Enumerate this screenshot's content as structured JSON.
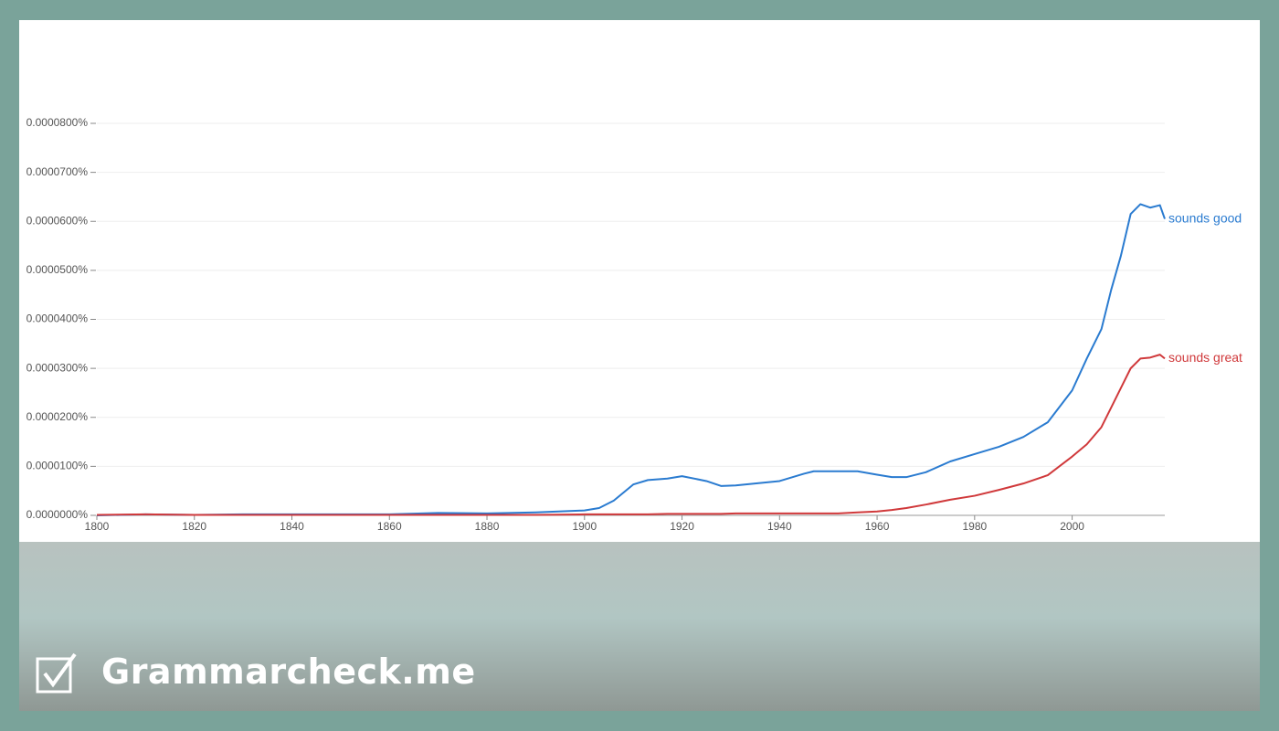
{
  "brand": "Grammarcheck.me",
  "chart_data": {
    "type": "line",
    "x": [
      1800,
      1810,
      1820,
      1830,
      1840,
      1850,
      1860,
      1870,
      1880,
      1890,
      1900,
      1903,
      1906,
      1910,
      1913,
      1917,
      1920,
      1925,
      1928,
      1931,
      1935,
      1940,
      1945,
      1947,
      1952,
      1956,
      1960,
      1963,
      1966,
      1970,
      1975,
      1980,
      1985,
      1990,
      1995,
      2000,
      2003,
      2006,
      2008,
      2010,
      2012,
      2014,
      2016,
      2018,
      2019
    ],
    "series": [
      {
        "name": "sounds good",
        "color": "#2a7bd0",
        "values": [
          0,
          2e-09,
          1e-09,
          2e-09,
          2e-09,
          2e-09,
          2e-09,
          5e-09,
          4e-09,
          6e-09,
          1e-08,
          1.5e-08,
          3e-08,
          6.3e-08,
          7.2e-08,
          7.5e-08,
          8e-08,
          7e-08,
          6e-08,
          6.1e-08,
          6.5e-08,
          7e-08,
          8.5e-08,
          9e-08,
          9e-08,
          9e-08,
          8.3e-08,
          7.8e-08,
          7.8e-08,
          8.8e-08,
          1.1e-07,
          1.25e-07,
          1.4e-07,
          1.6e-07,
          1.9e-07,
          2.55e-07,
          3.2e-07,
          3.8e-07,
          4.6e-07,
          5.3e-07,
          6.15e-07,
          6.35e-07,
          6.28e-07,
          6.33e-07,
          6.05e-07
        ]
      },
      {
        "name": "sounds great",
        "color": "#d0393b",
        "values": [
          1e-09,
          2e-09,
          1e-09,
          1e-09,
          1e-09,
          1e-09,
          1e-09,
          1e-09,
          1e-09,
          1e-09,
          2e-09,
          2e-09,
          2e-09,
          2e-09,
          2e-09,
          3e-09,
          3e-09,
          3e-09,
          3e-09,
          4e-09,
          4e-09,
          4e-09,
          4e-09,
          4e-09,
          4e-09,
          6e-09,
          8e-09,
          1.1e-08,
          1.5e-08,
          2.2e-08,
          3.2e-08,
          4e-08,
          5.2e-08,
          6.5e-08,
          8.2e-08,
          1.2e-07,
          1.45e-07,
          1.8e-07,
          2.2e-07,
          2.6e-07,
          3e-07,
          3.2e-07,
          3.22e-07,
          3.28e-07,
          3.2e-07
        ]
      }
    ],
    "xlim": [
      1800,
      2019
    ],
    "xticks": [
      1800,
      1820,
      1840,
      1860,
      1880,
      1900,
      1920,
      1940,
      1960,
      1980,
      2000
    ],
    "ylim": [
      0,
      8e-07
    ],
    "yticks": [
      {
        "value": 0,
        "label": "0.0000000%"
      },
      {
        "value": 1e-07,
        "label": "0.0000100%"
      },
      {
        "value": 2e-07,
        "label": "0.0000200%"
      },
      {
        "value": 3e-07,
        "label": "0.0000300%"
      },
      {
        "value": 4e-07,
        "label": "0.0000400%"
      },
      {
        "value": 5e-07,
        "label": "0.0000500%"
      },
      {
        "value": 6e-07,
        "label": "0.0000600%"
      },
      {
        "value": 7e-07,
        "label": "0.0000700%"
      },
      {
        "value": 8e-07,
        "label": "0.0000800%"
      }
    ],
    "grid": true
  }
}
